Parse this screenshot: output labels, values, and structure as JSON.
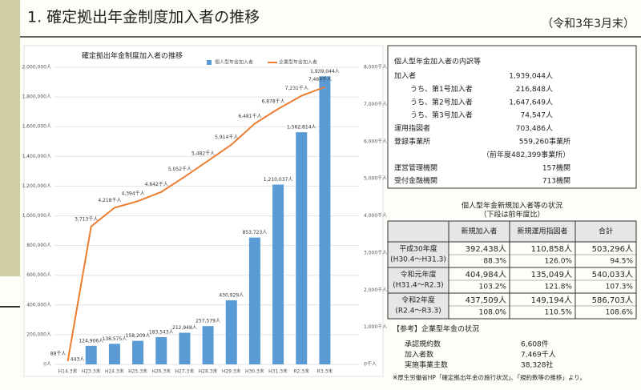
{
  "header": {
    "title": "1. 確定拠出年金制度加入者の推移",
    "date": "（令和3年3月末）"
  },
  "chart_data": {
    "type": "combo",
    "title": "確定拠出年金制度加入者の推移",
    "categories": [
      "H14.3末",
      "H23.3末",
      "H24.3末",
      "H25.3末",
      "H26.3末",
      "H27.3末",
      "H28.3末",
      "H29.3末",
      "H30.3末",
      "H31.3末",
      "R2.3末",
      "R3.3末"
    ],
    "series": [
      {
        "name": "個人型年金加入者",
        "type": "bar",
        "color": "#5b9bd5",
        "values": [
          443,
          124906,
          138575,
          158209,
          183543,
          212948,
          257579,
          430929,
          853723,
          1210037,
          1562814,
          1939044
        ],
        "value_labels": [
          "443人",
          "124,906人",
          "138,575人",
          "158,209人",
          "183,543人",
          "212,948人",
          "257,579人",
          "430,929人",
          "853,723人",
          "1,210,037人",
          "1,562,814人",
          "1,939,044人"
        ]
      },
      {
        "name": "企業型年金加入者",
        "type": "line",
        "axis": "y2",
        "color": "#ed7d31",
        "values": [
          88,
          3713,
          4218,
          4394,
          4642,
          5052,
          5482,
          5914,
          6481,
          6878,
          7231,
          7469
        ],
        "value_labels": [
          "88千人",
          "3,713千人",
          "4,218千人",
          "4,394千人",
          "4,642千人",
          "5,052千人",
          "5,482千人",
          "5,914千人",
          "6,481千人",
          "6,878千人",
          "7,231千人",
          "7,469千人"
        ]
      }
    ],
    "ylim": [
      0,
      2000000
    ],
    "yticks": [
      {
        "value": 0,
        "label": "0人"
      },
      {
        "value": 200000,
        "label": "200,000人"
      },
      {
        "value": 400000,
        "label": "400,000人"
      },
      {
        "value": 600000,
        "label": "600,000人"
      },
      {
        "value": 800000,
        "label": "800,000人"
      },
      {
        "value": 1000000,
        "label": "1,000,000人"
      },
      {
        "value": 1200000,
        "label": "1,200,000人"
      },
      {
        "value": 1400000,
        "label": "1,400,000人"
      },
      {
        "value": 1600000,
        "label": "1,600,000人"
      },
      {
        "value": 1800000,
        "label": "1,800,000人"
      },
      {
        "value": 2000000,
        "label": "2,000,000人"
      }
    ],
    "y2lim": [
      0,
      8000
    ],
    "y2ticks": [
      {
        "value": 0,
        "label": "0千人"
      },
      {
        "value": 1000,
        "label": "1,000千人"
      },
      {
        "value": 2000,
        "label": "2,000千人"
      },
      {
        "value": 3000,
        "label": "3,000千人"
      },
      {
        "value": 4000,
        "label": "4,000千人"
      },
      {
        "value": 5000,
        "label": "5,000千人"
      },
      {
        "value": 6000,
        "label": "6,000千人"
      },
      {
        "value": 7000,
        "label": "7,000千人"
      },
      {
        "value": 8000,
        "label": "8,000千人"
      }
    ],
    "grid": true,
    "legend": "top"
  },
  "breakdown": {
    "title": "個人型年金加入者の内訳等",
    "rows": [
      [
        "加入者",
        "1,939,044人"
      ],
      [
        "うち、第1号加入者",
        "216,848人"
      ],
      [
        "うち、第2号加入者",
        "1,647,649人"
      ],
      [
        "うち、第3号加入者",
        "74,547人"
      ],
      [
        "運用指図者",
        "703,486人"
      ],
      [
        "登録事業所",
        "559,260事業所"
      ],
      [
        "（前年度482,399事業所）"
      ],
      [
        "運営管理機関",
        "157機関"
      ],
      [
        "受付金融機関",
        "713機関"
      ]
    ]
  },
  "new_enrollment": {
    "title": "個人型年金新規加入者等の状況",
    "subtitle": "（下段は前年度比）",
    "columns": [
      "新規加入者",
      "新規運用指図者",
      "合計"
    ],
    "rows": [
      {
        "label": "平成30年度",
        "period": "(H30.4～H31.3)",
        "values": [
          "392,438人",
          "110,858人",
          "503,296人"
        ],
        "ratios": [
          "88.3%",
          "126.0%",
          "94.5%"
        ]
      },
      {
        "label": "令和元年度",
        "period": "(H31.4～R2.3)",
        "values": [
          "404,984人",
          "135,049人",
          "540,033人"
        ],
        "ratios": [
          "103.2%",
          "121.8%",
          "107.3%"
        ]
      },
      {
        "label": "令和2年度",
        "period": "(R2.4～R3.3)",
        "values": [
          "437,509人",
          "149,194人",
          "586,703人"
        ],
        "ratios": [
          "108.0%",
          "110.5%",
          "108.6%"
        ]
      }
    ]
  },
  "reference": {
    "title": "【参考】企業型年金の状況",
    "rows": [
      [
        "承認規約数",
        "6,608件"
      ],
      [
        "加入者数",
        "7,469千人"
      ],
      [
        "実施事業主数",
        "38,328社"
      ]
    ]
  },
  "footnote": "※厚生労働省HP「確定拠出年金の施行状況」、「規約数等の推移」より。"
}
